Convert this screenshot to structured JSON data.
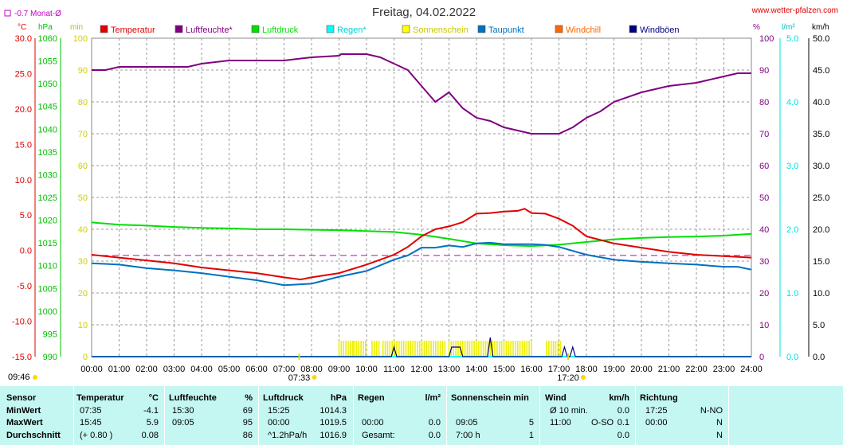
{
  "header": {
    "title": "Freitag, 04.02.2022",
    "site": "www.wetter-pfalzen.com",
    "monthly_avg": "-0.7 Monat-Ø",
    "units_left": [
      "°C",
      "hPa",
      "min"
    ],
    "units_right": [
      "%",
      "l/m²",
      "km/h"
    ]
  },
  "legend": [
    {
      "label": "Temperatur",
      "color": "#e00000"
    },
    {
      "label": "Luftfeuchte*",
      "color": "#800080"
    },
    {
      "label": "Luftdruck",
      "color": "#00e000"
    },
    {
      "label": "Regen*",
      "color": "#00ffff"
    },
    {
      "label": "Sonnenschein",
      "color": "#ffff00"
    },
    {
      "label": "Taupunkt",
      "color": "#0070c0"
    },
    {
      "label": "Windchill",
      "color": "#ff6600"
    },
    {
      "label": "Windböen",
      "color": "#000080"
    }
  ],
  "chart_data": {
    "type": "line",
    "title": "Freitag, 04.02.2022",
    "x_unit": "hours",
    "x_ticks": [
      "00:00",
      "01:00",
      "02:00",
      "03:00",
      "04:00",
      "05:00",
      "06:00",
      "07:00",
      "08:00",
      "09:00",
      "10:00",
      "11:00",
      "12:00",
      "13:00",
      "14:00",
      "15:00",
      "16:00",
      "17:00",
      "18:00",
      "19:00",
      "20:00",
      "21:00",
      "22:00",
      "23:00",
      "24:00"
    ],
    "xlim": [
      0,
      24
    ],
    "axes": {
      "temperature": {
        "unit": "°C",
        "range": [
          -15,
          30
        ],
        "ticks": [
          "30.0",
          "25.0",
          "20.0",
          "15.0",
          "10.0",
          "5.0",
          "0.0",
          "-5.0",
          "-10.0",
          "-15.0"
        ],
        "color": "#e00000"
      },
      "pressure": {
        "unit": "hPa",
        "range": [
          990,
          1060
        ],
        "ticks": [
          "1060",
          "1055",
          "1050",
          "1045",
          "1040",
          "1035",
          "1030",
          "1025",
          "1020",
          "1015",
          "1010",
          "1005",
          "1000",
          "995",
          "990"
        ],
        "color": "#00c000"
      },
      "sunshine": {
        "unit": "min",
        "range": [
          0,
          100
        ],
        "ticks": [
          "100",
          "90",
          "80",
          "70",
          "60",
          "50",
          "40",
          "30",
          "20",
          "10",
          "0"
        ],
        "color": "#d0d000"
      },
      "humidity": {
        "unit": "%",
        "range": [
          0,
          100
        ],
        "ticks": [
          "100",
          "90",
          "80",
          "70",
          "60",
          "50",
          "40",
          "30",
          "20",
          "10",
          "0"
        ],
        "color": "#800080"
      },
      "rain": {
        "unit": "l/m²",
        "range": [
          0,
          5
        ],
        "ticks": [
          "5.0",
          "4.0",
          "3.0",
          "2.0",
          "1.0",
          "0.0"
        ],
        "color": "#00e0e0"
      },
      "wind": {
        "unit": "km/h",
        "range": [
          0,
          50
        ],
        "ticks": [
          "50.0",
          "45.0",
          "40.0",
          "35.0",
          "30.0",
          "25.0",
          "20.0",
          "15.0",
          "10.0",
          "5.0",
          "0.0"
        ],
        "color": "#000000"
      }
    },
    "grid": true,
    "monthly_average_temperature": -0.7,
    "series": [
      {
        "name": "Temperatur",
        "axis": "temperature",
        "color": "#e00000",
        "x": [
          0,
          1,
          2,
          3,
          4,
          5,
          6,
          7,
          7.6,
          8,
          9,
          10,
          11,
          11.5,
          12,
          12.5,
          13,
          13.5,
          14,
          14.5,
          15,
          15.5,
          15.75,
          16,
          16.5,
          17,
          17.5,
          18,
          19,
          20,
          21,
          22,
          23,
          24
        ],
        "y": [
          -0.6,
          -1.0,
          -1.4,
          -1.8,
          -2.4,
          -2.8,
          -3.2,
          -3.8,
          -4.1,
          -3.8,
          -3.2,
          -2.0,
          -0.6,
          0.5,
          2.0,
          3.0,
          3.4,
          4.0,
          5.2,
          5.3,
          5.5,
          5.6,
          5.9,
          5.3,
          5.2,
          4.5,
          3.5,
          2.0,
          1.0,
          0.4,
          -0.2,
          -0.6,
          -0.8,
          -1.0
        ]
      },
      {
        "name": "Luftfeuchte*",
        "axis": "humidity",
        "color": "#800080",
        "x": [
          0,
          0.5,
          1,
          2,
          3,
          3.5,
          4,
          5,
          6,
          7,
          8,
          9,
          9.08,
          10,
          10.5,
          11,
          11.5,
          12,
          12.5,
          13,
          13.5,
          14,
          14.5,
          15,
          15.5,
          16,
          16.5,
          17,
          17.5,
          18,
          18.5,
          19,
          20,
          21,
          22,
          23,
          23.5,
          24
        ],
        "y": [
          90,
          90,
          91,
          91,
          91,
          91,
          92,
          93,
          93,
          93,
          94,
          94.5,
          95,
          95,
          94,
          92,
          90,
          85,
          80,
          83,
          78,
          75,
          74,
          72,
          71,
          70,
          70,
          70,
          72,
          75,
          77,
          80,
          83,
          85,
          86,
          88,
          89,
          89
        ]
      },
      {
        "name": "Luftdruck",
        "axis": "pressure",
        "color": "#00e000",
        "x": [
          0,
          1,
          2,
          3,
          4,
          5,
          6,
          7,
          8,
          9,
          10,
          11,
          12,
          13,
          14,
          15,
          16,
          17,
          18,
          19,
          20,
          21,
          22,
          23,
          24
        ],
        "y": [
          1019.5,
          1019.0,
          1018.8,
          1018.5,
          1018.3,
          1018.2,
          1018.0,
          1018.0,
          1017.9,
          1017.8,
          1017.6,
          1017.4,
          1016.8,
          1015.9,
          1014.9,
          1014.5,
          1014.3,
          1014.6,
          1015.2,
          1015.8,
          1016.1,
          1016.3,
          1016.4,
          1016.6,
          1017.0
        ]
      },
      {
        "name": "Taupunkt",
        "axis": "temperature",
        "color": "#0070c0",
        "x": [
          0,
          1,
          2,
          3,
          4,
          5,
          6,
          7,
          8,
          9,
          10,
          11,
          11.5,
          12,
          12.5,
          13,
          13.5,
          14,
          14.5,
          15,
          15.5,
          16,
          16.5,
          17,
          18,
          19,
          20,
          21,
          22,
          23,
          23.5,
          24
        ],
        "y": [
          -1.8,
          -2.0,
          -2.5,
          -2.8,
          -3.2,
          -3.7,
          -4.2,
          -4.9,
          -4.7,
          -3.7,
          -2.9,
          -1.3,
          -0.7,
          0.4,
          0.4,
          0.7,
          0.5,
          1.0,
          1.1,
          0.9,
          0.9,
          0.9,
          0.8,
          0.5,
          -0.6,
          -1.3,
          -1.6,
          -1.8,
          -2.0,
          -2.3,
          -2.3,
          -2.7
        ]
      },
      {
        "name": "Regen*",
        "axis": "rain",
        "color": "#00ffff",
        "x": [
          0,
          24
        ],
        "y": [
          0,
          0
        ]
      },
      {
        "name": "Windböen",
        "axis": "wind",
        "color": "#000080",
        "x": [
          0,
          10.9,
          11.0,
          11.1,
          12,
          13,
          13.1,
          13.4,
          13.5,
          14,
          14.4,
          14.5,
          14.6,
          17,
          17.1,
          17.2,
          17.3,
          17.4,
          17.5,
          17.6,
          24
        ],
        "y": [
          0,
          0,
          1.5,
          0,
          0,
          0,
          1.5,
          1.5,
          0,
          0,
          0,
          3.0,
          0,
          0,
          0,
          1.5,
          0,
          0,
          1.5,
          0,
          0
        ]
      }
    ],
    "sunshine_bars": {
      "axis": "sunshine",
      "value": 5,
      "intervals": [
        [
          9.0,
          9.5
        ],
        [
          9.55,
          9.75
        ],
        [
          9.8,
          10.0
        ],
        [
          10.2,
          10.5
        ],
        [
          10.6,
          12.9
        ],
        [
          13.0,
          16.05
        ],
        [
          16.55,
          17.05
        ]
      ]
    },
    "markers": {
      "sunrise": "07:33",
      "sunset": "17:20",
      "now": "09:46"
    }
  },
  "stats": {
    "headers": {
      "sensor": "Sensor",
      "temperature": "Temperatur",
      "temperature_unit": "°C",
      "humidity": "Luftfeuchte",
      "humidity_unit": "%",
      "pressure": "Luftdruck",
      "pressure_unit": "hPa",
      "rain": "Regen",
      "rain_unit": "l/m²",
      "sunshine": "Sonnenschein min",
      "wind": "Wind",
      "wind_unit": "km/h",
      "direction": "Richtung"
    },
    "rows": [
      {
        "label": "MinWert",
        "t_time": "07:35",
        "t_val": "-4.1",
        "h_time": "15:30",
        "h_val": "69",
        "p_time": "15:25",
        "p_val": "1014.3",
        "r_time": "",
        "r_val": "",
        "s_time": "",
        "s_val": "",
        "w_time": "Ø 10 min.",
        "w_val": "0.0",
        "d_time": "17:25",
        "d_val": "N-NO"
      },
      {
        "label": "MaxWert",
        "t_time": "15:45",
        "t_val": "5.9",
        "h_time": "09:05",
        "h_val": "95",
        "p_time": "00:00",
        "p_val": "1019.5",
        "r_time": "00:00",
        "r_val": "0.0",
        "s_time": "09:05",
        "s_val": "5",
        "w_time": "11:00",
        "w_dir": "O-SO",
        "w_val": "0.1",
        "d_time": "00:00",
        "d_val": "N"
      },
      {
        "label": "Durchschnitt",
        "t_time": "(+ 0.80 )",
        "t_val": "0.08",
        "h_time": "",
        "h_val": "86",
        "p_time": "^1.2hPa/h",
        "p_val": "1016.9",
        "r_time": "Gesamt:",
        "r_val": "0.0",
        "s_time": "7:00 h",
        "s_val": "1",
        "w_time": "",
        "w_val": "0.0",
        "d_time": "",
        "d_val": "N"
      }
    ]
  }
}
